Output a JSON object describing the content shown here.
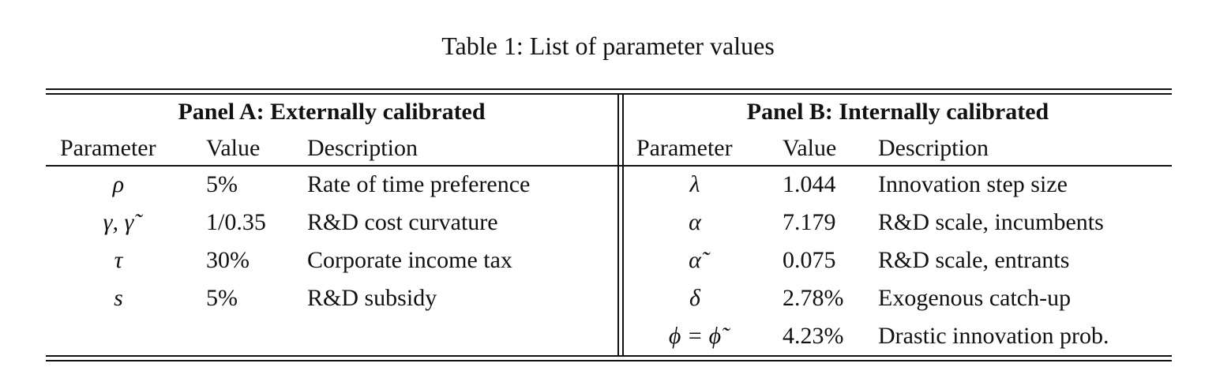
{
  "caption": "Table 1: List of parameter values",
  "panel_a": {
    "title": "Panel A: Externally calibrated",
    "headers": [
      "Parameter",
      "Value",
      "Description"
    ],
    "rows": [
      {
        "param": "ρ",
        "value": "5%",
        "desc": "Rate of time preference"
      },
      {
        "param": "γ, γ̃",
        "value": "1/0.35",
        "desc": "R&D cost curvature"
      },
      {
        "param": "τ",
        "value": "30%",
        "desc": "Corporate income tax"
      },
      {
        "param": "s",
        "value": "5%",
        "desc": "R&D subsidy"
      }
    ]
  },
  "panel_b": {
    "title": "Panel B: Internally calibrated",
    "headers": [
      "Parameter",
      "Value",
      "Description"
    ],
    "rows": [
      {
        "param": "λ",
        "value": "1.044",
        "desc": "Innovation step size"
      },
      {
        "param": "α",
        "value": "7.179",
        "desc": "R&D scale, incumbents"
      },
      {
        "param": "α̃",
        "value": "0.075",
        "desc": "R&D scale, entrants"
      },
      {
        "param": "δ",
        "value": "2.78%",
        "desc": "Exogenous catch-up"
      },
      {
        "param": "ϕ = ϕ̃",
        "value": "4.23%",
        "desc": "Drastic innovation prob."
      }
    ]
  }
}
